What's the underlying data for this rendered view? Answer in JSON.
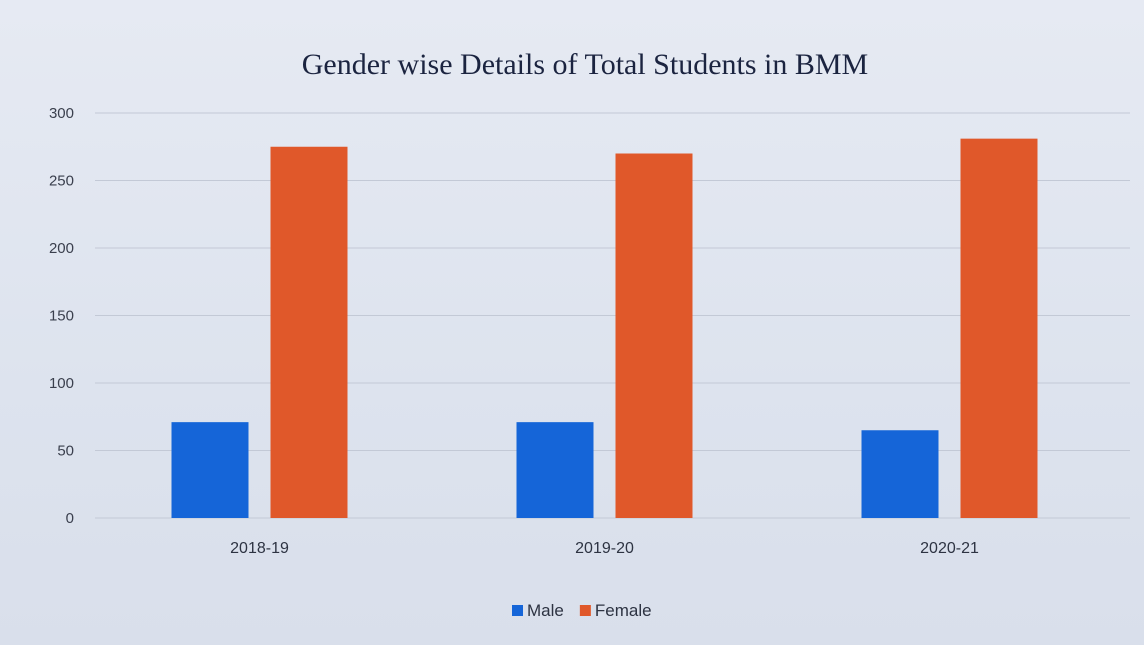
{
  "chart_data": {
    "type": "bar",
    "title": "Gender wise Details of Total Students in BMM",
    "categories": [
      "2018-19",
      "2019-20",
      "2020-21"
    ],
    "series": [
      {
        "name": "Male",
        "color": "#1565d8",
        "values": [
          71,
          71,
          65
        ]
      },
      {
        "name": "Female",
        "color": "#e0582a",
        "values": [
          275,
          270,
          281
        ]
      }
    ],
    "yticks": [
      "0",
      "50",
      "100",
      "150",
      "200",
      "250",
      "300"
    ],
    "ylim": [
      0,
      300
    ],
    "grid": true,
    "legend_position": "bottom"
  }
}
